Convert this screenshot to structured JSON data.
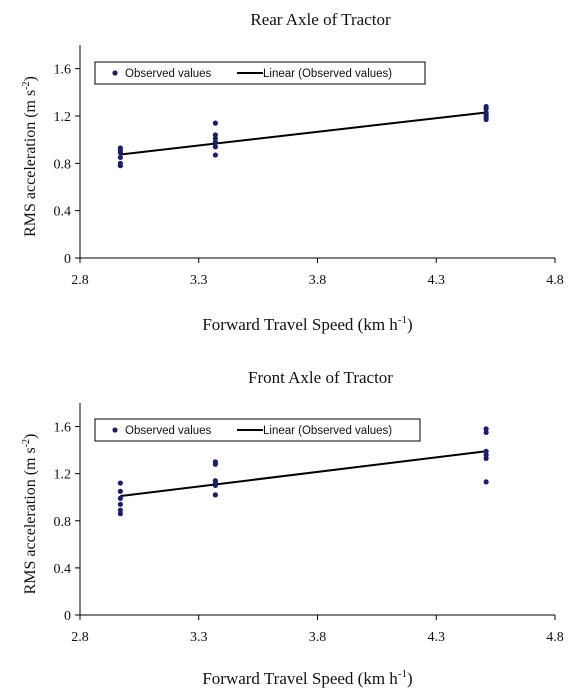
{
  "chart_data": [
    {
      "type": "scatter",
      "title": "Rear Axle of Tractor",
      "xlabel": "Forward Travel Speed (km h",
      "xlabel_sup": "-1",
      "xlabel_tail": ")",
      "ylabel": "RMS acceleration  (m s",
      "ylabel_sup": "-2",
      "ylabel_tail": ")",
      "xlim": [
        2.8,
        4.8
      ],
      "ylim": [
        0,
        1.8
      ],
      "x_ticks": [
        "2.8",
        "3.3",
        "3.8",
        "4.3",
        "4.8"
      ],
      "x_tick_values": [
        2.8,
        3.3,
        3.8,
        4.3,
        4.8
      ],
      "y_ticks": [
        "0",
        "0.4",
        "0.8",
        "1.2",
        "1.6"
      ],
      "y_tick_values": [
        0,
        0.4,
        0.8,
        1.2,
        1.6
      ],
      "grid": false,
      "legend_position": "top",
      "series": [
        {
          "name": "Observed values",
          "kind": "points",
          "color": "#1b1f6b",
          "x": [
            2.97,
            2.97,
            2.97,
            2.97,
            2.97,
            2.97,
            3.37,
            3.37,
            3.37,
            3.37,
            3.37,
            3.37,
            4.51,
            4.51,
            4.51,
            4.51,
            4.51,
            4.51
          ],
          "y": [
            0.78,
            0.8,
            0.85,
            0.89,
            0.91,
            0.93,
            0.87,
            0.94,
            0.98,
            1.01,
            1.04,
            1.14,
            1.17,
            1.19,
            1.21,
            1.23,
            1.26,
            1.28
          ]
        },
        {
          "name": "Linear (Observed values)",
          "kind": "line",
          "color": "#000000",
          "x": [
            2.97,
            4.51
          ],
          "y": [
            0.875,
            1.23
          ]
        }
      ]
    },
    {
      "type": "scatter",
      "title": "Front Axle of Tractor",
      "xlabel": "Forward Travel Speed (km h",
      "xlabel_sup": "-1",
      "xlabel_tail": ")",
      "ylabel": "RMS acceleration  (m s",
      "ylabel_sup": "-2",
      "ylabel_tail": ")",
      "xlim": [
        2.8,
        4.8
      ],
      "ylim": [
        0,
        1.8
      ],
      "x_ticks": [
        "2.8",
        "3.3",
        "3.8",
        "4.3",
        "4.8"
      ],
      "x_tick_values": [
        2.8,
        3.3,
        3.8,
        4.3,
        4.8
      ],
      "y_ticks": [
        "0",
        "0.4",
        "0.8",
        "1.2",
        "1.6"
      ],
      "y_tick_values": [
        0,
        0.4,
        0.8,
        1.2,
        1.6
      ],
      "grid": false,
      "legend_position": "top",
      "series": [
        {
          "name": "Observed values",
          "kind": "points",
          "color": "#1b1f6b",
          "x": [
            2.97,
            2.97,
            2.97,
            2.97,
            2.97,
            2.97,
            3.37,
            3.37,
            3.37,
            3.37,
            3.37,
            3.37,
            4.51,
            4.51,
            4.51,
            4.51,
            4.51,
            4.51
          ],
          "y": [
            0.86,
            0.89,
            0.94,
            0.99,
            1.05,
            1.12,
            1.02,
            1.1,
            1.12,
            1.14,
            1.28,
            1.3,
            1.13,
            1.33,
            1.36,
            1.39,
            1.55,
            1.58
          ]
        },
        {
          "name": "Linear (Observed values)",
          "kind": "line",
          "color": "#000000",
          "x": [
            2.97,
            4.51
          ],
          "y": [
            1.01,
            1.39
          ]
        }
      ]
    }
  ]
}
